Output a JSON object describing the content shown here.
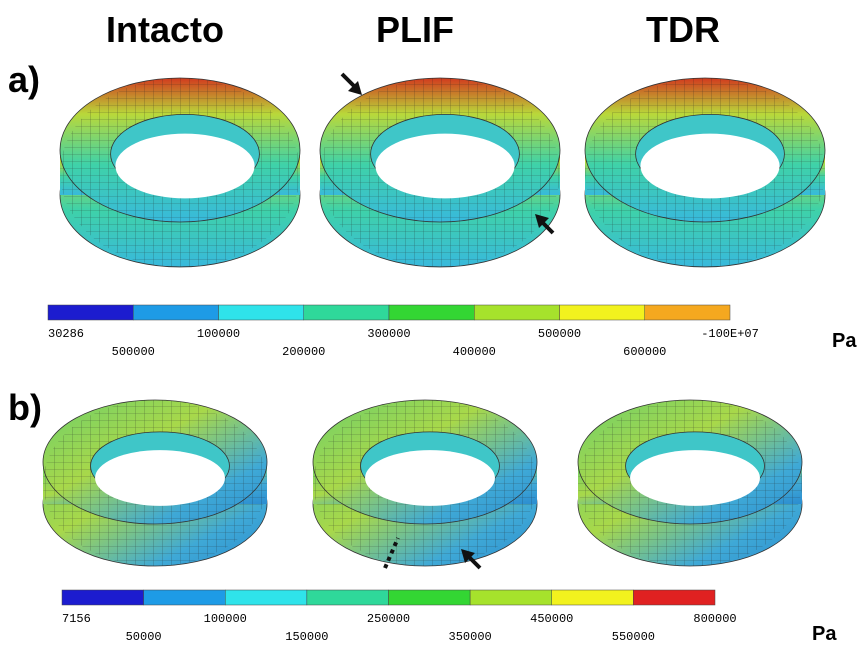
{
  "headers": [
    "Intacto",
    "PLIF",
    "TDR"
  ],
  "panels": [
    {
      "label": "a)",
      "colorbar": {
        "colors": [
          "#1c1ccf",
          "#1e9be6",
          "#2fe3ea",
          "#2fd89a",
          "#33d633",
          "#a6e22c",
          "#f2f21e",
          "#f5a81f",
          "#e02121"
        ],
        "labels_top": [
          "30286",
          "100000",
          "300000",
          "500000",
          "-100E+07"
        ],
        "labels_bottom": [
          "500000",
          "200000",
          "400000",
          "600000"
        ]
      },
      "unit": "Pa"
    },
    {
      "label": "b)",
      "colorbar": {
        "colors": [
          "#1c1ccf",
          "#1e9be6",
          "#2fe3ea",
          "#2fd89a",
          "#33d633",
          "#a6e22c",
          "#f2f21e",
          "#e02121"
        ],
        "labels_top": [
          "7156",
          "100000",
          "250000",
          "450000",
          "800000"
        ],
        "labels_bottom": [
          "50000",
          "150000",
          "350000",
          "550000"
        ]
      },
      "unit": "Pa"
    }
  ]
}
